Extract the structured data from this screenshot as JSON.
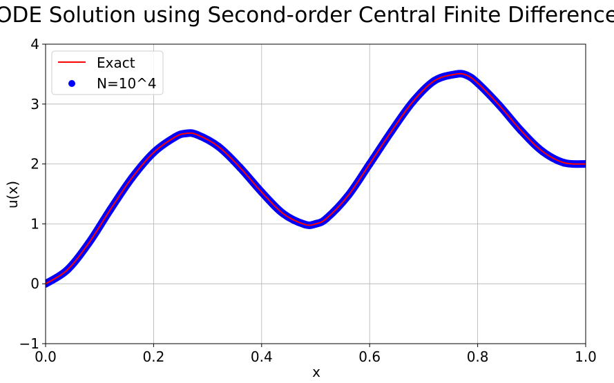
{
  "chart_data": {
    "type": "line",
    "title": "ODE Solution using Second-order Central Finite Difference",
    "xlabel": "x",
    "ylabel": "u(x)",
    "xlim": [
      0.0,
      1.0
    ],
    "ylim": [
      -1,
      4
    ],
    "xticks": [
      "0.0",
      "0.2",
      "0.4",
      "0.6",
      "0.8",
      "1.0"
    ],
    "yticks": [
      "−1",
      "0",
      "1",
      "2",
      "3",
      "4"
    ],
    "grid": true,
    "legend_position": "upper-left",
    "series": [
      {
        "name": "Exact",
        "kind": "line",
        "color": "#ff0000",
        "x": [
          0.0,
          0.04,
          0.08,
          0.12,
          0.16,
          0.2,
          0.24,
          0.26,
          0.28,
          0.32,
          0.36,
          0.4,
          0.44,
          0.48,
          0.5,
          0.52,
          0.56,
          0.6,
          0.64,
          0.68,
          0.72,
          0.76,
          0.78,
          0.8,
          0.84,
          0.88,
          0.92,
          0.96,
          1.0
        ],
        "y": [
          0.0,
          0.23,
          0.68,
          1.24,
          1.77,
          2.19,
          2.45,
          2.51,
          2.49,
          2.29,
          1.94,
          1.53,
          1.17,
          0.99,
          1.0,
          1.09,
          1.47,
          2.0,
          2.54,
          3.04,
          3.39,
          3.5,
          3.48,
          3.35,
          2.98,
          2.56,
          2.21,
          2.02,
          2.0
        ]
      },
      {
        "name": "N=10^4",
        "kind": "scatter",
        "color": "#0000ff",
        "x": [
          0.0,
          0.04,
          0.08,
          0.12,
          0.16,
          0.2,
          0.24,
          0.26,
          0.28,
          0.32,
          0.36,
          0.4,
          0.44,
          0.48,
          0.5,
          0.52,
          0.56,
          0.6,
          0.64,
          0.68,
          0.72,
          0.76,
          0.78,
          0.8,
          0.84,
          0.88,
          0.92,
          0.96,
          1.0
        ],
        "y": [
          0.0,
          0.23,
          0.68,
          1.24,
          1.77,
          2.19,
          2.45,
          2.51,
          2.49,
          2.29,
          1.94,
          1.53,
          1.17,
          0.99,
          1.0,
          1.09,
          1.47,
          2.0,
          2.54,
          3.04,
          3.39,
          3.5,
          3.48,
          3.35,
          2.98,
          2.56,
          2.21,
          2.02,
          2.0
        ]
      }
    ]
  }
}
